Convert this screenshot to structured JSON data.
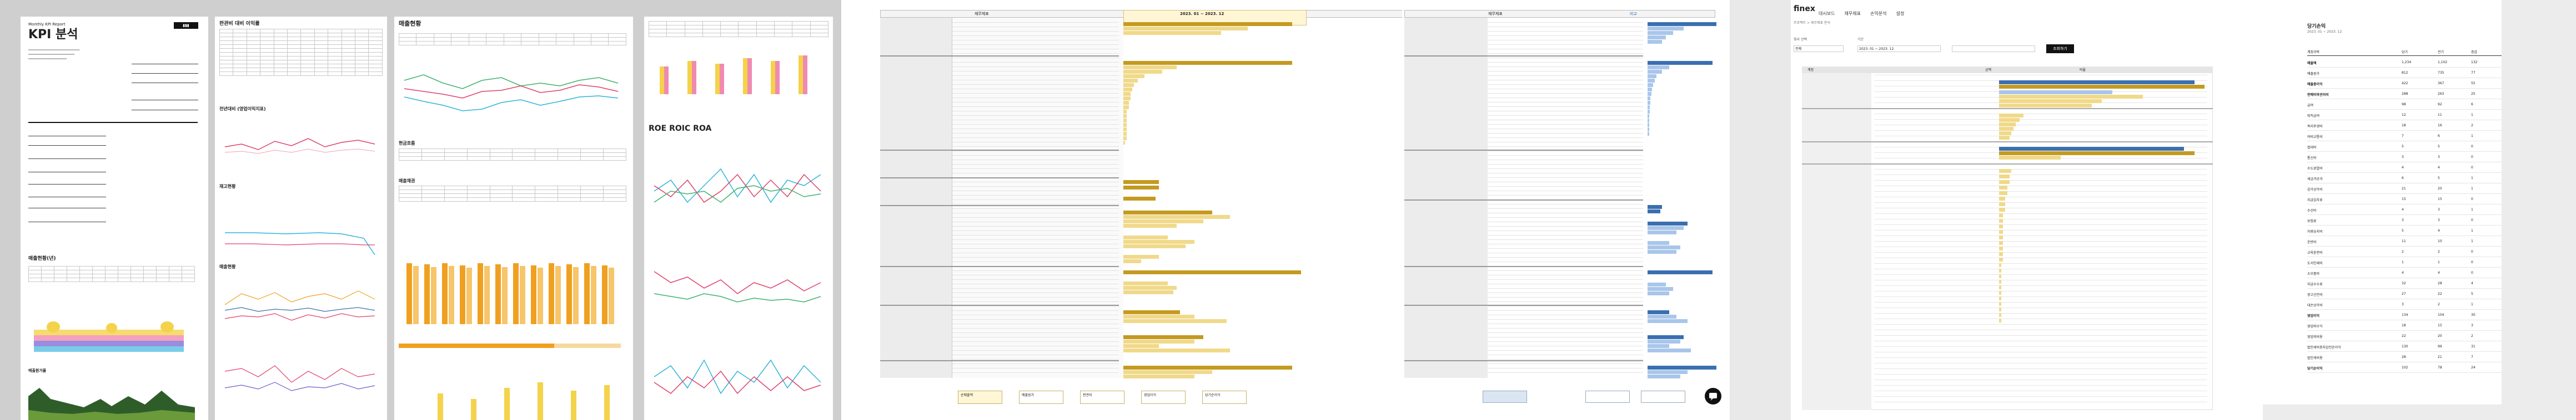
{
  "colors": {
    "gold": "#c49a1f",
    "light_gold": "#f0d98a",
    "blue": "#3a6fb0",
    "light_blue": "#a9c6ea",
    "orange": "#f0a020",
    "red": "#e0406a",
    "green": "#3db36b",
    "dark_green": "#2f5d2a",
    "cyan": "#2fb5d8",
    "black_button": "#111111"
  },
  "panel1": {
    "subtitle": "Monthly KPI Report",
    "title": "KPI 분석",
    "section_sales_trend": "매출현황",
    "section_margin": "판관비 대비 이익률",
    "section_yoy": "전년대비 (영업이익지표)",
    "section_cost": "재고현황",
    "section_sales_mix": "매출현황",
    "section_cash": "현금흐름",
    "section_receivable": "매출채권",
    "section_roe": "ROE ROIC ROA",
    "section_sales_year": "매출현황(년)",
    "section_sales_cmp": "매출원가율"
  },
  "panel2": {
    "header_left": "재무제표",
    "header_mid": "2023. 01 ~ 2023. 12",
    "summary_buttons": [
      "순매출액",
      "매출원가",
      "판관비",
      "영업이익",
      "당기순이익"
    ]
  },
  "panel3": {
    "header_left": "재무제표",
    "header_right": "비교"
  },
  "panel4": {
    "logo": "finex",
    "nav": [
      "대시보드",
      "재무제표",
      "손익분석",
      "설정"
    ],
    "breadcrumb": "프로젝트 > 재무제표 분석",
    "filter_label_1": "회사 선택",
    "filter_value_1": "전체",
    "filter_label_2": "기간",
    "filter_value_2": "2023. 01 ~ 2023. 12",
    "apply_button": "조회하기",
    "col_headers": [
      "계정",
      "금액",
      "비율"
    ]
  },
  "panel5": {
    "title": "당기손익",
    "subtitle": "2023. 01 ~ 2023. 12",
    "col_headers": [
      "계정과목",
      "당기",
      "전기",
      "증감"
    ],
    "rows": [
      [
        "매출액",
        "1,234",
        "1,102",
        "132"
      ],
      [
        "매출원가",
        "812",
        "735",
        "77"
      ],
      [
        "매출총이익",
        "422",
        "367",
        "55"
      ],
      [
        "판매비와관리비",
        "288",
        "263",
        "25"
      ],
      [
        "급여",
        "98",
        "92",
        "6"
      ],
      [
        "퇴직급여",
        "12",
        "11",
        "1"
      ],
      [
        "복리후생비",
        "18",
        "16",
        "2"
      ],
      [
        "여비교통비",
        "7",
        "6",
        "1"
      ],
      [
        "접대비",
        "5",
        "5",
        "0"
      ],
      [
        "통신비",
        "3",
        "3",
        "0"
      ],
      [
        "수도광열비",
        "4",
        "4",
        "0"
      ],
      [
        "세금과공과",
        "6",
        "5",
        "1"
      ],
      [
        "감가상각비",
        "21",
        "20",
        "1"
      ],
      [
        "지급임차료",
        "15",
        "15",
        "0"
      ],
      [
        "수선비",
        "4",
        "3",
        "1"
      ],
      [
        "보험료",
        "3",
        "3",
        "0"
      ],
      [
        "차량유지비",
        "5",
        "4",
        "1"
      ],
      [
        "운반비",
        "11",
        "10",
        "1"
      ],
      [
        "교육훈련비",
        "2",
        "2",
        "0"
      ],
      [
        "도서인쇄비",
        "1",
        "1",
        "0"
      ],
      [
        "소모품비",
        "4",
        "4",
        "0"
      ],
      [
        "지급수수료",
        "32",
        "28",
        "4"
      ],
      [
        "광고선전비",
        "27",
        "22",
        "5"
      ],
      [
        "대손상각비",
        "3",
        "2",
        "1"
      ],
      [
        "영업이익",
        "134",
        "104",
        "30"
      ],
      [
        "영업외수익",
        "18",
        "15",
        "3"
      ],
      [
        "영업외비용",
        "22",
        "20",
        "2"
      ],
      [
        "법인세비용차감전순이익",
        "130",
        "99",
        "31"
      ],
      [
        "법인세비용",
        "28",
        "21",
        "7"
      ],
      [
        "당기순이익",
        "102",
        "78",
        "24"
      ]
    ]
  }
}
